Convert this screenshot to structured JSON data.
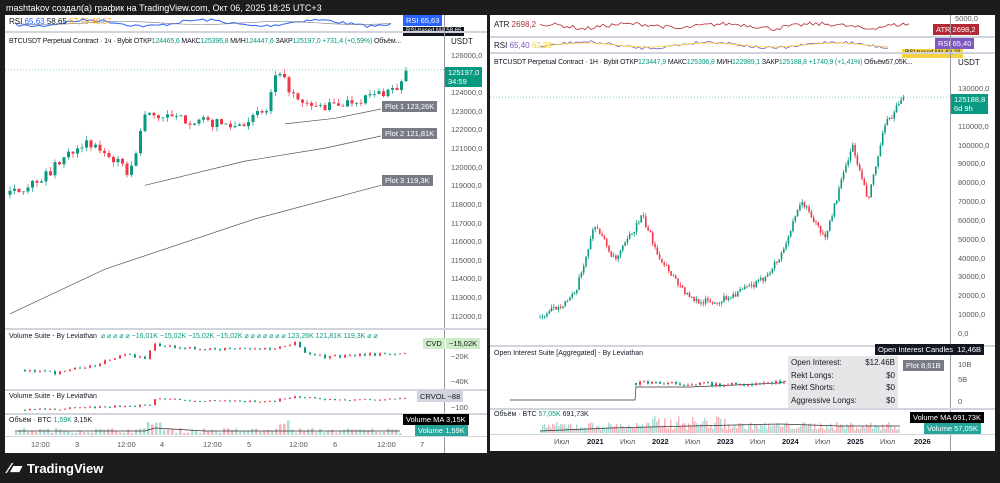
{
  "caption": "mashtakov создал(а) график на TradingView.com, Окт 06, 2025 18:25 UTC+3",
  "logo": "TradingView",
  "colors": {
    "up": "#089981",
    "down": "#f23645",
    "accent": "#2962ff"
  },
  "left": {
    "rsi": {
      "label": "RSI",
      "v1": "65,63",
      "v2": "58,65",
      "v3": "67,59",
      "v4": "48,57",
      "tag_label": "RSI",
      "tag_value": "65,63",
      "ma_label": "RSI-based MA",
      "ma_value": "58,65"
    },
    "legend": {
      "symbol": "BTCUSDT Perpetual Contract · 1ч · Bybit",
      "open_l": "ОТКР",
      "open": "124465,6",
      "high_l": "МАКС",
      "high": "125396,8",
      "low_l": "МИН",
      "low": "124447,6",
      "close_l": "ЗАКР",
      "close": "125197,0",
      "change": "+731,4 (+0,59%)",
      "vol": "Объём..."
    },
    "currency": "USDT",
    "price_ticks": [
      "126000,0",
      "124000,0",
      "123000,0",
      "122000,0",
      "121000,0",
      "120000,0",
      "119000,0",
      "118000,0",
      "117000,0",
      "116000,0",
      "115000,0",
      "114000,0",
      "113000,0",
      "112000,0"
    ],
    "last_price": "125197,0",
    "countdown": "34:59",
    "plots": [
      {
        "label": "Plot 1",
        "value": "123,26K"
      },
      {
        "label": "Plot 2",
        "value": "121,81K"
      },
      {
        "label": "Plot 3",
        "value": "119,3K"
      }
    ],
    "vs1": {
      "title": "Volume Suite - By Leviathan",
      "values": "⌀ ⌀ ⌀ ⌀ ⌀ −16,01K −15,02K −15,02K −15,02K ⌀ ⌀ ⌀ ⌀ ⌀ ⌀ ⌀ 123,26K 121,81K 119,3K ⌀ ⌀",
      "tag_label": "CVD",
      "tag_value": "−15,02K",
      "ticks": [
        "−20K",
        "−40K"
      ]
    },
    "vs2": {
      "title": "Volume Suite - By Leviathan",
      "tag_label": "CRVOL",
      "tag_value": "−88",
      "ticks": [
        "−100"
      ]
    },
    "volume": {
      "title": "Объём · BTC",
      "v1": "1,59K",
      "v2": "3,15K",
      "ma_label": "Volume MA",
      "ma_value": "3,15K",
      "vol_label": "Volume",
      "vol_value": "1,59K"
    },
    "time_ticks": [
      "12:00",
      "3",
      "12:00",
      "4",
      "12:00",
      "5",
      "12:00",
      "6",
      "12:00",
      "7"
    ]
  },
  "right": {
    "atr": {
      "label": "ATR",
      "value": "2698,2",
      "tag_label": "ATR",
      "tag_value": "2698,2",
      "tick": "5000,0"
    },
    "rsi": {
      "label": "RSI",
      "v1": "65,40",
      "v2": "62,23",
      "tag_label": "RSI",
      "tag_value": "65,40",
      "ma_label": "RSI-based MA",
      "ma_value": "62,23"
    },
    "legend": {
      "symbol": "BTCUSDT Perpetual Contract · 1H · Bybit",
      "open_l": "ОТКР",
      "open": "123447,9",
      "high_l": "МАКС",
      "high": "125396,8",
      "low_l": "МИН",
      "low": "122989,1",
      "close_l": "ЗАКР",
      "close": "125188,8",
      "change": "+1740,9 (+1,41%)",
      "vol": "Объём57,05K..."
    },
    "currency": "USDT",
    "price_ticks": [
      "130000,0",
      "110000,0",
      "100000,0",
      "90000,0",
      "80000,0",
      "70000,0",
      "60000,0",
      "50000,0",
      "40000,0",
      "30000,0",
      "20000,0",
      "10000,0",
      "0,0"
    ],
    "last_price": "125188,8",
    "countdown": "6d 9h",
    "oi": {
      "title": "Open Interest Suite [Aggregated] - By Leviathan",
      "rows": [
        {
          "k": "Open Interest:",
          "v": "$12.46B"
        },
        {
          "k": "Rekt Longs:",
          "v": "$0"
        },
        {
          "k": "Rekt Shorts:",
          "v": "$0"
        },
        {
          "k": "Aggressive Longs:",
          "v": "$0"
        }
      ],
      "tag_label": "Open Interest Candles",
      "tag_value": "12,46B",
      "plot_label": "Plot",
      "plot_value": "8,61B",
      "ticks": [
        "10B",
        "5B",
        "0"
      ]
    },
    "volume": {
      "title": "Объём · BTC",
      "v1": "57,05K",
      "v2": "691,73K",
      "ma_label": "Volume MA",
      "ma_value": "691,73K",
      "vol_label": "Volume",
      "vol_value": "57,05K"
    },
    "time_ticks": [
      "Июл",
      "2021",
      "Июл",
      "2022",
      "Июл",
      "2023",
      "Июл",
      "2024",
      "Июл",
      "2025",
      "Июл",
      "2026"
    ]
  }
}
